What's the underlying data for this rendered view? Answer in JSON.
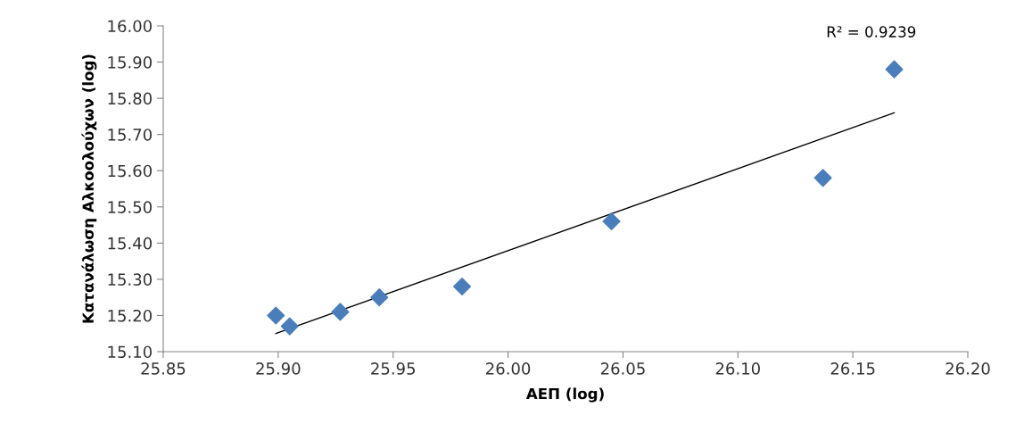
{
  "chart_data": {
    "type": "scatter",
    "xlabel": "ΑΕΠ (log)",
    "ylabel": "Κατανάλωση Αλκοολούχων (log)",
    "annotations": [
      "R² = 0.9239"
    ],
    "series": [
      {
        "color": "#4a7ebb",
        "marker": "diamond",
        "x": [
          25.899,
          25.905,
          25.927,
          25.944,
          25.98,
          26.045,
          26.137,
          26.168
        ],
        "values": [
          15.2,
          15.17,
          15.21,
          15.25,
          15.28,
          15.46,
          15.58,
          15.88
        ]
      },
      {
        "type": "line",
        "color": "#000000",
        "x": [
          25.899,
          26.168
        ],
        "values": [
          15.15,
          15.76
        ]
      }
    ],
    "xlim": [
      25.85,
      26.2
    ],
    "xticks": [
      {
        "value": 25.85,
        "label": "25.85"
      },
      {
        "value": 25.9,
        "label": "25.90"
      },
      {
        "value": 25.95,
        "label": "25.95"
      },
      {
        "value": 26.0,
        "label": "26.00"
      },
      {
        "value": 26.05,
        "label": "26.05"
      },
      {
        "value": 26.1,
        "label": "26.10"
      },
      {
        "value": 26.15,
        "label": "26.15"
      },
      {
        "value": 26.2,
        "label": "26.20"
      }
    ],
    "ylim": [
      15.1,
      16.0
    ],
    "yticks": [
      {
        "value": 15.1,
        "label": "15.10"
      },
      {
        "value": 15.2,
        "label": "15.20"
      },
      {
        "value": 15.3,
        "label": "15.30"
      },
      {
        "value": 15.4,
        "label": "15.40"
      },
      {
        "value": 15.5,
        "label": "15.50"
      },
      {
        "value": 15.6,
        "label": "15.60"
      },
      {
        "value": 15.7,
        "label": "15.70"
      },
      {
        "value": 15.8,
        "label": "15.80"
      },
      {
        "value": 15.9,
        "label": "15.90"
      },
      {
        "value": 16.0,
        "label": "16.00"
      }
    ],
    "grid": false,
    "legend": false
  }
}
